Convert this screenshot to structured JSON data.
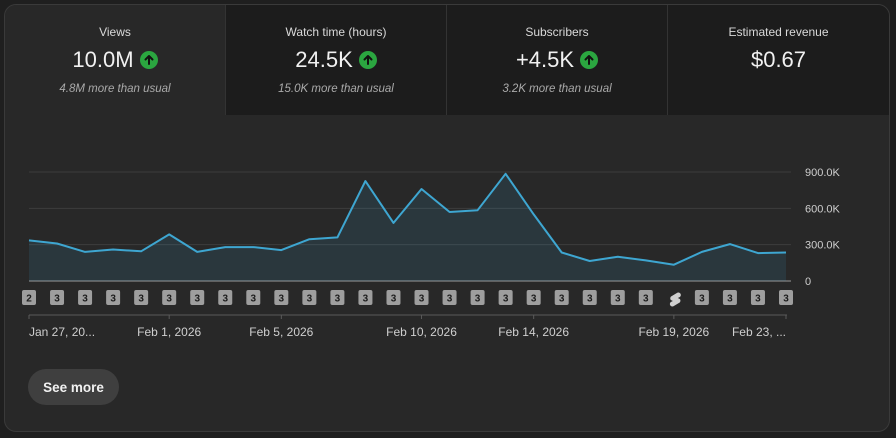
{
  "tabs": [
    {
      "label": "Views",
      "value": "10.0M",
      "sub": "4.8M more than usual",
      "trend": "up"
    },
    {
      "label": "Watch time (hours)",
      "value": "24.5K",
      "sub": "15.0K more than usual",
      "trend": "up"
    },
    {
      "label": "Subscribers",
      "value": "+4.5K",
      "sub": "3.2K more than usual",
      "trend": "up"
    },
    {
      "label": "Estimated revenue",
      "value": "$0.67",
      "sub": "",
      "trend": "none"
    }
  ],
  "colors": {
    "line": "#3ea6d1",
    "up": "#2ba640"
  },
  "chart_data": {
    "type": "line",
    "title": "Views",
    "ylim": [
      0,
      900000
    ],
    "yticks": [
      0,
      300000,
      600000,
      900000
    ],
    "ytick_labels": [
      "0",
      "300.0K",
      "600.0K",
      "900.0K"
    ],
    "values": [
      335000,
      310000,
      240000,
      260000,
      245000,
      385000,
      240000,
      280000,
      280000,
      255000,
      345000,
      360000,
      825000,
      480000,
      760000,
      570000,
      585000,
      885000,
      550000,
      235000,
      165000,
      200000,
      170000,
      135000,
      240000,
      305000,
      230000,
      235000
    ],
    "xtick_labels": [
      "Jan 27, 20...",
      "Feb 1, 2026",
      "Feb 5, 2026",
      "Feb 10, 2026",
      "Feb 14, 2026",
      "Feb 19, 2026",
      "Feb 23, ..."
    ],
    "xtick_index": [
      0,
      5,
      9,
      14,
      18,
      23,
      27
    ],
    "markers": [
      "2",
      "3",
      "3",
      "3",
      "3",
      "3",
      "3",
      "3",
      "3",
      "3",
      "3",
      "3",
      "3",
      "3",
      "3",
      "3",
      "3",
      "3",
      "3",
      "3",
      "3",
      "3",
      "3",
      "shorts",
      "3",
      "3",
      "3",
      "3"
    ]
  },
  "see_more_label": "See more"
}
